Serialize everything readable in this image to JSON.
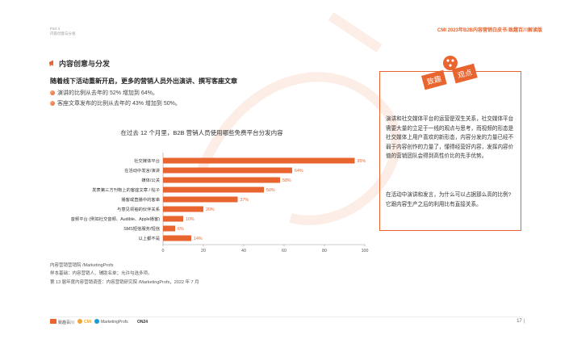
{
  "header": {
    "part": "Part 3",
    "part_sub": "内容创意与分发",
    "report_title": "CMI 2023年B2B内容营销白皮书-致趣百川解读版"
  },
  "section": {
    "title": "内容创意与分发",
    "headline": "随着线下活动重新开启，更多的营销人员外出演讲、撰写客座文章",
    "bullets": [
      "演讲的比例从去年的 52% 增加到 64%。",
      "客座文章发布的比例从去年的 43% 增加到 50%。"
    ]
  },
  "chart_data": {
    "type": "bar",
    "orientation": "horizontal",
    "title": "在过去 12 个月里，B2B 营销人员使用哪些免费平台分发内容",
    "categories": [
      "社交媒体平台",
      "在活动中发言/演讲",
      "媒体/公关",
      "发表第三方刊物上的客座文章 / 帖子",
      "播客或直播中的客串",
      "与意见领袖的伙伴关系",
      "音频平台 (例如社交音频、Audible、Apple播客)",
      "SMS短信服务/短信",
      "以上都不是"
    ],
    "values": [
      95,
      64,
      58,
      50,
      37,
      20,
      10,
      6,
      14
    ],
    "value_labels": [
      "95%",
      "64%",
      "58%",
      "50%",
      "37%",
      "20%",
      "10%",
      "6%",
      "14%"
    ],
    "xlim": [
      0,
      100
    ],
    "xticks": [
      "0",
      "20",
      "40",
      "60",
      "80",
      "100"
    ],
    "bar_color": "#e8652f",
    "grid": false
  },
  "source": {
    "org": "内容营销营销院 /MarketingProfs",
    "sample": "样本基础：内容营销人、辅助名单；允许勾选多项。",
    "survey": "第 13 届年度内容营销调查：内容营销研究院 /MarketingProfs，2022 年 7 月"
  },
  "sidebar": {
    "stamp_left": "致趣",
    "stamp_right": "观点",
    "paragraph1": "演讲和社交媒体平台的运营是双生关系，社交媒体平台需要大量的立足于一线的观点与思考，而视频的形态是社交媒体上用户喜欢的新形态，内容分发的力量已经不弱于内容创作的力量了，懂得经营好内容，发挥内容价值的营销团队会得到高性价比的先手优势。",
    "paragraph2": "在活动中演讲和发言，为什么可以占据那么高的比例? 它跟内容生产之后的利用比有直接关系。"
  },
  "footer": {
    "logos": [
      "致趣百川",
      "CMI",
      "MarketingProfs",
      "ON24"
    ],
    "page": "17"
  },
  "colors": {
    "accent": "#e8652f",
    "watermark": "#fbe3d8"
  }
}
